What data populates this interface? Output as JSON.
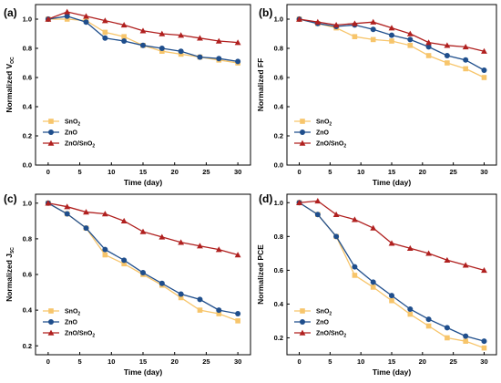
{
  "series_styles": [
    {
      "color": "#f7c56b",
      "marker": "square"
    },
    {
      "color": "#1f4e8c",
      "marker": "circle"
    },
    {
      "color": "#b0201f",
      "marker": "triangle"
    }
  ],
  "chart_data": [
    {
      "panel_label": "(a)",
      "type": "line",
      "xlabel": "Time (day)",
      "ylabel": "Normalized V",
      "ylabel_sub": "OC",
      "xlim": [
        -2,
        32
      ],
      "ylim": [
        0.0,
        1.1
      ],
      "xticks": [
        "0",
        "5",
        "10",
        "15",
        "20",
        "25",
        "30"
      ],
      "yticks": [
        "0.0",
        "0.2",
        "0.4",
        "0.6",
        "0.8",
        "1.0"
      ],
      "legend": "bottom-left",
      "x": [
        0,
        3,
        6,
        9,
        12,
        15,
        18,
        21,
        24,
        27,
        30
      ],
      "series": [
        {
          "name": "SnO",
          "name_sub": "2",
          "values": [
            1.0,
            1.0,
            0.99,
            0.91,
            0.88,
            0.82,
            0.78,
            0.76,
            0.74,
            0.72,
            0.7
          ]
        },
        {
          "name": "ZnO",
          "name_sub": "",
          "values": [
            1.0,
            1.02,
            0.98,
            0.87,
            0.85,
            0.82,
            0.8,
            0.78,
            0.74,
            0.73,
            0.71
          ]
        },
        {
          "name": "ZnO/SnO",
          "name_sub": "2",
          "values": [
            1.0,
            1.05,
            1.02,
            0.99,
            0.96,
            0.92,
            0.9,
            0.89,
            0.87,
            0.85,
            0.84
          ]
        }
      ]
    },
    {
      "panel_label": "(b)",
      "type": "line",
      "xlabel": "Time (day)",
      "ylabel": "Normalized FF",
      "ylabel_sub": "",
      "xlim": [
        -2,
        32
      ],
      "ylim": [
        0.0,
        1.1
      ],
      "xticks": [
        "0",
        "5",
        "10",
        "15",
        "20",
        "25",
        "30"
      ],
      "yticks": [
        "0.0",
        "0.2",
        "0.4",
        "0.6",
        "0.8",
        "1.0"
      ],
      "legend": "bottom-left",
      "x": [
        0,
        3,
        6,
        9,
        12,
        15,
        18,
        21,
        24,
        27,
        30
      ],
      "series": [
        {
          "name": "SnO",
          "name_sub": "2",
          "values": [
            1.0,
            0.97,
            0.94,
            0.88,
            0.86,
            0.85,
            0.82,
            0.75,
            0.7,
            0.66,
            0.6
          ]
        },
        {
          "name": "ZnO",
          "name_sub": "",
          "values": [
            1.0,
            0.97,
            0.95,
            0.96,
            0.93,
            0.89,
            0.86,
            0.81,
            0.75,
            0.72,
            0.65
          ]
        },
        {
          "name": "ZnO/SnO",
          "name_sub": "2",
          "values": [
            1.0,
            0.98,
            0.96,
            0.97,
            0.98,
            0.94,
            0.9,
            0.84,
            0.82,
            0.81,
            0.78
          ]
        }
      ]
    },
    {
      "panel_label": "(c)",
      "type": "line",
      "xlabel": "Time (day)",
      "ylabel": "Normalized J",
      "ylabel_sub": "SC",
      "xlim": [
        -2,
        32
      ],
      "ylim": [
        0.15,
        1.05
      ],
      "xticks": [
        "0",
        "5",
        "10",
        "15",
        "20",
        "25",
        "30"
      ],
      "yticks": [
        "0.2",
        "0.4",
        "0.6",
        "0.8",
        "1.0"
      ],
      "legend": "bottom-left",
      "x": [
        0,
        3,
        6,
        9,
        12,
        15,
        18,
        21,
        24,
        27,
        30
      ],
      "series": [
        {
          "name": "SnO",
          "name_sub": "2",
          "values": [
            1.0,
            0.94,
            0.86,
            0.71,
            0.66,
            0.6,
            0.54,
            0.47,
            0.4,
            0.38,
            0.34
          ]
        },
        {
          "name": "ZnO",
          "name_sub": "",
          "values": [
            1.0,
            0.94,
            0.86,
            0.74,
            0.68,
            0.61,
            0.55,
            0.49,
            0.46,
            0.4,
            0.38
          ]
        },
        {
          "name": "ZnO/SnO",
          "name_sub": "2",
          "values": [
            1.0,
            0.98,
            0.95,
            0.94,
            0.9,
            0.84,
            0.81,
            0.78,
            0.76,
            0.74,
            0.71
          ]
        }
      ]
    },
    {
      "panel_label": "(d)",
      "type": "line",
      "xlabel": "Time (day)",
      "ylabel": "Normalized PCE",
      "ylabel_sub": "",
      "xlim": [
        -2,
        32
      ],
      "ylim": [
        0.1,
        1.05
      ],
      "xticks": [
        "0",
        "5",
        "10",
        "15",
        "20",
        "25",
        "30"
      ],
      "yticks": [
        "0.2",
        "0.4",
        "0.6",
        "0.8",
        "1.0"
      ],
      "legend": "bottom-left",
      "x": [
        0,
        3,
        6,
        9,
        12,
        15,
        18,
        21,
        24,
        27,
        30
      ],
      "series": [
        {
          "name": "SnO",
          "name_sub": "2",
          "values": [
            1.0,
            0.93,
            0.8,
            0.57,
            0.5,
            0.42,
            0.34,
            0.27,
            0.2,
            0.18,
            0.14
          ]
        },
        {
          "name": "ZnO",
          "name_sub": "",
          "values": [
            1.0,
            0.93,
            0.8,
            0.62,
            0.53,
            0.45,
            0.37,
            0.31,
            0.26,
            0.21,
            0.18
          ]
        },
        {
          "name": "ZnO/SnO",
          "name_sub": "2",
          "values": [
            1.0,
            1.01,
            0.93,
            0.9,
            0.85,
            0.76,
            0.73,
            0.7,
            0.66,
            0.63,
            0.6
          ]
        }
      ]
    }
  ]
}
